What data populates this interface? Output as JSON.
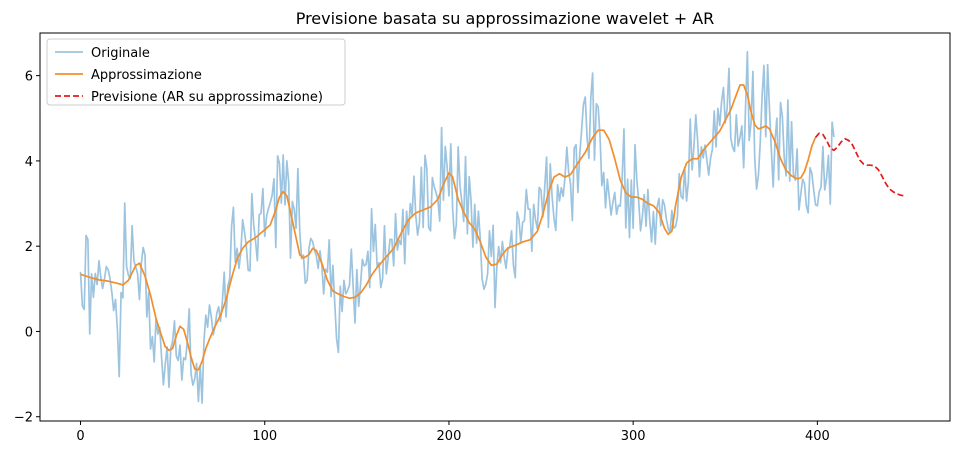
{
  "chart_data": {
    "type": "line",
    "title": "Previsione basata su approssimazione wavelet + AR",
    "xlabel": "",
    "ylabel": "",
    "xlim": [
      -22,
      472
    ],
    "ylim": [
      -2.1,
      7.0
    ],
    "xticks": [
      0,
      100,
      200,
      300,
      400
    ],
    "yticks": [
      -2,
      0,
      2,
      4,
      6
    ],
    "xtick_labels": [
      "0",
      "100",
      "200",
      "300",
      "400"
    ],
    "ytick_labels": [
      "−2",
      "0",
      "2",
      "4",
      "6"
    ],
    "grid": false,
    "legend_placement": "top-left",
    "series": [
      {
        "name": "Originale",
        "color": "#9dc4df",
        "style": "solid",
        "x_start": 0,
        "values": [
          1.4,
          0.6,
          0.52,
          2.25,
          2.16,
          -0.06,
          1.35,
          0.8,
          1.36,
          1.1,
          1.66,
          1.27,
          1.01,
          1.23,
          1.52,
          1.45,
          1.24,
          0.92,
          0.49,
          0.75,
          0.06,
          -1.06,
          0.91,
          0.79,
          3.01,
          1.52,
          1.32,
          1.24,
          2.48,
          1.65,
          1.51,
          1.35,
          0.75,
          1.59,
          1.97,
          1.79,
          0.34,
          0.92,
          -0.41,
          -0.12,
          -0.71,
          0.31,
          -0.06,
          0.09,
          -0.61,
          -1.25,
          -0.76,
          -0.36,
          -1.31,
          -0.4,
          -0.23,
          0.25,
          -0.58,
          -0.68,
          -0.32,
          -1.14,
          -0.62,
          -0.66,
          -0.21,
          0.53,
          -0.99,
          -1.26,
          -1.11,
          -0.75,
          -1.64,
          -0.81,
          -1.68,
          -0.23,
          0.38,
          0.1,
          0.62,
          0.35,
          -0.08,
          0.11,
          0.43,
          0.58,
          0.24,
          0.7,
          1.39,
          0.34,
          1.07,
          1.24,
          2.46,
          2.91,
          1.63,
          1.95,
          1.48,
          1.85,
          2.62,
          2.34,
          2.0,
          1.44,
          1.42,
          3.23,
          2.51,
          2.12,
          1.66,
          2.74,
          2.77,
          3.35,
          2.23,
          2.7,
          2.88,
          3.02,
          3.19,
          3.58,
          1.97,
          4.12,
          3.94,
          3.01,
          4.14,
          2.97,
          4.0,
          3.5,
          1.72,
          3.05,
          2.86,
          2.42,
          3.82,
          2.35,
          1.71,
          1.79,
          1.13,
          1.2,
          1.95,
          2.18,
          2.11,
          1.91,
          1.77,
          1.48,
          1.89,
          1.55,
          0.88,
          1.46,
          1.39,
          2.15,
          0.82,
          1.55,
          0.67,
          -0.17,
          -0.49,
          1.06,
          0.47,
          1.2,
          0.88,
          0.96,
          1.09,
          1.93,
          1.05,
          0.2,
          1.45,
          0.59,
          1.1,
          1.69,
          1.54,
          1.57,
          1.88,
          1.03,
          2.88,
          1.88,
          2.51,
          1.53,
          1.61,
          1.03,
          1.24,
          2.48,
          1.35,
          1.72,
          2.16,
          2.16,
          1.54,
          2.76,
          1.91,
          2.14,
          2.04,
          2.86,
          1.59,
          2.82,
          2.27,
          3.0,
          2.71,
          3.64,
          2.71,
          2.26,
          2.55,
          3.85,
          2.44,
          4.13,
          3.82,
          2.44,
          2.36,
          3.61,
          3.39,
          3.26,
          3.08,
          2.59,
          4.78,
          3.08,
          4.34,
          3.87,
          3.18,
          4.4,
          2.88,
          2.18,
          2.5,
          4.33,
          3.41,
          3.05,
          2.58,
          4.1,
          2.29,
          3.63,
          3.06,
          1.98,
          2.98,
          2.07,
          2.82,
          2.18,
          1.23,
          0.99,
          1.11,
          1.35,
          2.36,
          1.76,
          2.49,
          0.56,
          1.51,
          1.99,
          1.61,
          2.11,
          1.74,
          1.48,
          1.91,
          1.99,
          2.36,
          1.55,
          1.26,
          2.8,
          2.63,
          2.08,
          2.56,
          2.6,
          3.33,
          2.87,
          2.87,
          1.88,
          2.98,
          2.62,
          2.4,
          3.38,
          3.31,
          2.69,
          3.39,
          4.09,
          2.44,
          3.93,
          3.16,
          2.66,
          2.37,
          3.44,
          3.06,
          3.37,
          3.17,
          3.62,
          4.32,
          3.73,
          3.46,
          2.6,
          4.3,
          4.38,
          3.26,
          4.16,
          4.71,
          5.32,
          5.5,
          4.54,
          4.06,
          5.47,
          6.06,
          4.02,
          5.34,
          5.27,
          4.59,
          3.42,
          3.73,
          2.9,
          3.57,
          3.16,
          2.73,
          3.03,
          3.26,
          2.75,
          2.96,
          2.94,
          3.56,
          4.75,
          2.43,
          3.57,
          2.2,
          3.55,
          2.42,
          4.38,
          3.55,
          3.07,
          2.36,
          2.7,
          3.21,
          2.47,
          3.33,
          2.61,
          2.1,
          2.81,
          2.05,
          2.92,
          3.12,
          2.48,
          3.09,
          2.97,
          2.65,
          2.42,
          2.31,
          2.84,
          2.42,
          2.46,
          2.67,
          3.7,
          3.17,
          3.11,
          3.84,
          3.06,
          3.52,
          4.98,
          3.79,
          4.35,
          5.08,
          4.48,
          3.63,
          4.33,
          4.07,
          4.37,
          4.03,
          3.67,
          4.06,
          4.27,
          5.17,
          4.33,
          5.23,
          4.83,
          5.39,
          5.72,
          4.89,
          5.23,
          6.17,
          4.53,
          4.32,
          4.22,
          5.08,
          4.35,
          4.55,
          4.82,
          3.84,
          5.24,
          6.56,
          4.48,
          4.9,
          6.1,
          4.06,
          3.34,
          3.66,
          4.44,
          5.52,
          6.24,
          4.57,
          6.26,
          5.22,
          4.27,
          3.39,
          4.46,
          5.0,
          3.56,
          5.37,
          5.04,
          4.1,
          3.65,
          5.43,
          3.53,
          4.92,
          3.68,
          3.55,
          4.28,
          2.85,
          3.22,
          3.57,
          3.47,
          2.95,
          2.78,
          3.84,
          3.71,
          3.32,
          2.97,
          2.95,
          3.28,
          3.38,
          4.34,
          3.32,
          3.6,
          4.13,
          2.99,
          4.91,
          4.56
        ]
      },
      {
        "name": "Approssimazione",
        "color": "#f28e2b",
        "style": "solid",
        "points": [
          [
            0,
            1.34
          ],
          [
            5,
            1.27
          ],
          [
            10,
            1.21
          ],
          [
            15,
            1.18
          ],
          [
            20,
            1.13
          ],
          [
            23,
            1.09
          ],
          [
            26,
            1.2
          ],
          [
            30,
            1.55
          ],
          [
            32,
            1.6
          ],
          [
            35,
            1.3
          ],
          [
            38,
            0.85
          ],
          [
            41,
            0.3
          ],
          [
            44,
            -0.1
          ],
          [
            46,
            -0.36
          ],
          [
            48,
            -0.44
          ],
          [
            50,
            -0.4
          ],
          [
            52,
            -0.1
          ],
          [
            54,
            0.12
          ],
          [
            56,
            0.05
          ],
          [
            58,
            -0.25
          ],
          [
            60,
            -0.6
          ],
          [
            62,
            -0.88
          ],
          [
            64,
            -0.9
          ],
          [
            66,
            -0.7
          ],
          [
            68,
            -0.4
          ],
          [
            70,
            -0.18
          ],
          [
            73,
            0.12
          ],
          [
            76,
            0.38
          ],
          [
            79,
            0.75
          ],
          [
            82,
            1.25
          ],
          [
            85,
            1.7
          ],
          [
            88,
            1.95
          ],
          [
            91,
            2.1
          ],
          [
            95,
            2.2
          ],
          [
            99,
            2.35
          ],
          [
            103,
            2.5
          ],
          [
            106,
            2.85
          ],
          [
            108,
            3.15
          ],
          [
            110,
            3.28
          ],
          [
            112,
            3.18
          ],
          [
            114,
            2.8
          ],
          [
            117,
            2.2
          ],
          [
            119,
            1.8
          ],
          [
            121,
            1.72
          ],
          [
            124,
            1.8
          ],
          [
            126,
            1.95
          ],
          [
            128,
            1.9
          ],
          [
            131,
            1.6
          ],
          [
            134,
            1.2
          ],
          [
            137,
            0.95
          ],
          [
            140,
            0.88
          ],
          [
            143,
            0.82
          ],
          [
            146,
            0.78
          ],
          [
            149,
            0.8
          ],
          [
            152,
            0.9
          ],
          [
            155,
            1.08
          ],
          [
            158,
            1.32
          ],
          [
            161,
            1.5
          ],
          [
            164,
            1.65
          ],
          [
            167,
            1.8
          ],
          [
            170,
            1.95
          ],
          [
            174,
            2.3
          ],
          [
            178,
            2.62
          ],
          [
            182,
            2.78
          ],
          [
            186,
            2.85
          ],
          [
            190,
            2.92
          ],
          [
            194,
            3.1
          ],
          [
            197,
            3.45
          ],
          [
            200,
            3.72
          ],
          [
            202,
            3.62
          ],
          [
            205,
            3.1
          ],
          [
            208,
            2.8
          ],
          [
            211,
            2.55
          ],
          [
            214,
            2.4
          ],
          [
            217,
            2.1
          ],
          [
            220,
            1.75
          ],
          [
            223,
            1.55
          ],
          [
            226,
            1.58
          ],
          [
            229,
            1.8
          ],
          [
            232,
            1.96
          ],
          [
            236,
            2.02
          ],
          [
            240,
            2.1
          ],
          [
            244,
            2.15
          ],
          [
            248,
            2.35
          ],
          [
            251,
            2.75
          ],
          [
            254,
            3.25
          ],
          [
            257,
            3.62
          ],
          [
            260,
            3.7
          ],
          [
            263,
            3.62
          ],
          [
            266,
            3.68
          ],
          [
            270,
            3.95
          ],
          [
            274,
            4.2
          ],
          [
            278,
            4.55
          ],
          [
            281,
            4.72
          ],
          [
            284,
            4.72
          ],
          [
            287,
            4.5
          ],
          [
            290,
            4.05
          ],
          [
            293,
            3.55
          ],
          [
            296,
            3.25
          ],
          [
            299,
            3.15
          ],
          [
            302,
            3.15
          ],
          [
            305,
            3.1
          ],
          [
            308,
            3.0
          ],
          [
            311,
            2.95
          ],
          [
            314,
            2.8
          ],
          [
            317,
            2.42
          ],
          [
            319,
            2.28
          ],
          [
            321,
            2.35
          ],
          [
            323,
            2.95
          ],
          [
            326,
            3.6
          ],
          [
            329,
            3.95
          ],
          [
            332,
            4.05
          ],
          [
            335,
            4.05
          ],
          [
            338,
            4.25
          ],
          [
            341,
            4.4
          ],
          [
            344,
            4.55
          ],
          [
            347,
            4.7
          ],
          [
            350,
            4.95
          ],
          [
            353,
            5.2
          ],
          [
            356,
            5.55
          ],
          [
            358,
            5.78
          ],
          [
            360,
            5.78
          ],
          [
            362,
            5.55
          ],
          [
            364,
            5.15
          ],
          [
            366,
            4.85
          ],
          [
            368,
            4.75
          ],
          [
            370,
            4.78
          ],
          [
            372,
            4.82
          ],
          [
            374,
            4.75
          ],
          [
            377,
            4.45
          ],
          [
            380,
            4.05
          ],
          [
            383,
            3.78
          ],
          [
            386,
            3.65
          ],
          [
            389,
            3.58
          ],
          [
            391,
            3.6
          ],
          [
            393,
            3.75
          ],
          [
            395,
            4.02
          ],
          [
            397,
            4.35
          ],
          [
            399,
            4.55
          ]
        ]
      },
      {
        "name": "Previsione (AR su approssimazione)",
        "color": "#e41a1c",
        "style": "dashed",
        "points": [
          [
            399,
            4.55
          ],
          [
            401,
            4.65
          ],
          [
            403,
            4.62
          ],
          [
            405,
            4.48
          ],
          [
            407,
            4.3
          ],
          [
            409,
            4.25
          ],
          [
            411,
            4.33
          ],
          [
            413,
            4.45
          ],
          [
            415,
            4.52
          ],
          [
            417,
            4.48
          ],
          [
            419,
            4.38
          ],
          [
            421,
            4.2
          ],
          [
            423,
            4.02
          ],
          [
            425,
            3.93
          ],
          [
            427,
            3.9
          ],
          [
            429,
            3.9
          ],
          [
            431,
            3.88
          ],
          [
            433,
            3.8
          ],
          [
            435,
            3.65
          ],
          [
            437,
            3.48
          ],
          [
            439,
            3.35
          ],
          [
            441,
            3.28
          ],
          [
            443,
            3.23
          ],
          [
            445,
            3.2
          ],
          [
            447,
            3.18
          ]
        ]
      }
    ]
  }
}
